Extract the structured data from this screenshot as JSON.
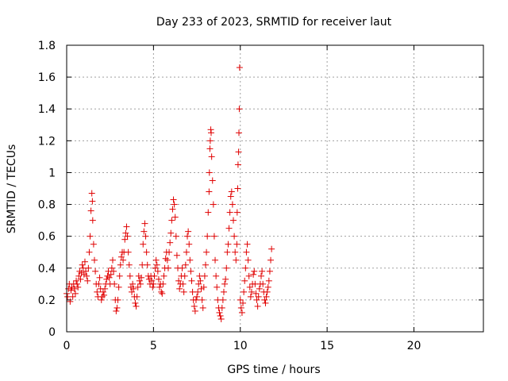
{
  "chart_data": {
    "type": "scatter",
    "title": "Day 233 of 2023, SRMTID for receiver laut",
    "xlabel": "GPS time / hours",
    "ylabel": "SRMTID / TECUs",
    "xlim": [
      0,
      24
    ],
    "ylim": [
      0,
      1.8
    ],
    "xticks": [
      "0",
      "5",
      "10",
      "15",
      "20"
    ],
    "yticks": [
      "0",
      "0.2",
      "0.4",
      "0.6",
      "0.8",
      "1",
      "1.2",
      "1.4",
      "1.6",
      "1.8"
    ],
    "grid": true,
    "marker": "+",
    "series_color": "#e00000",
    "series": [
      {
        "name": "SRMTID",
        "points": [
          [
            0.0,
            0.24
          ],
          [
            0.05,
            0.22
          ],
          [
            0.1,
            0.27
          ],
          [
            0.15,
            0.3
          ],
          [
            0.2,
            0.19
          ],
          [
            0.25,
            0.26
          ],
          [
            0.3,
            0.28
          ],
          [
            0.35,
            0.22
          ],
          [
            0.4,
            0.3
          ],
          [
            0.45,
            0.27
          ],
          [
            0.5,
            0.24
          ],
          [
            0.55,
            0.32
          ],
          [
            0.6,
            0.3
          ],
          [
            0.65,
            0.28
          ],
          [
            0.7,
            0.35
          ],
          [
            0.75,
            0.38
          ],
          [
            0.8,
            0.33
          ],
          [
            0.85,
            0.37
          ],
          [
            0.9,
            0.42
          ],
          [
            0.95,
            0.4
          ],
          [
            1.0,
            0.36
          ],
          [
            1.05,
            0.44
          ],
          [
            1.1,
            0.38
          ],
          [
            1.15,
            0.35
          ],
          [
            1.2,
            0.32
          ],
          [
            1.25,
            0.4
          ],
          [
            1.3,
            0.5
          ],
          [
            1.35,
            0.6
          ],
          [
            1.4,
            0.76
          ],
          [
            1.45,
            0.87
          ],
          [
            1.48,
            0.82
          ],
          [
            1.5,
            0.7
          ],
          [
            1.55,
            0.55
          ],
          [
            1.6,
            0.45
          ],
          [
            1.65,
            0.38
          ],
          [
            1.7,
            0.3
          ],
          [
            1.75,
            0.25
          ],
          [
            1.8,
            0.22
          ],
          [
            1.85,
            0.3
          ],
          [
            1.9,
            0.34
          ],
          [
            1.95,
            0.27
          ],
          [
            2.0,
            0.2
          ],
          [
            2.05,
            0.22
          ],
          [
            2.1,
            0.25
          ],
          [
            2.15,
            0.23
          ],
          [
            2.2,
            0.27
          ],
          [
            2.25,
            0.3
          ],
          [
            2.3,
            0.33
          ],
          [
            2.35,
            0.35
          ],
          [
            2.4,
            0.38
          ],
          [
            2.45,
            0.34
          ],
          [
            2.5,
            0.3
          ],
          [
            2.55,
            0.36
          ],
          [
            2.6,
            0.4
          ],
          [
            2.65,
            0.45
          ],
          [
            2.7,
            0.38
          ],
          [
            2.75,
            0.3
          ],
          [
            2.8,
            0.2
          ],
          [
            2.85,
            0.13
          ],
          [
            2.9,
            0.15
          ],
          [
            2.95,
            0.2
          ],
          [
            3.0,
            0.28
          ],
          [
            3.05,
            0.35
          ],
          [
            3.1,
            0.42
          ],
          [
            3.15,
            0.47
          ],
          [
            3.2,
            0.5
          ],
          [
            3.25,
            0.45
          ],
          [
            3.3,
            0.5
          ],
          [
            3.35,
            0.58
          ],
          [
            3.4,
            0.62
          ],
          [
            3.45,
            0.66
          ],
          [
            3.5,
            0.6
          ],
          [
            3.55,
            0.5
          ],
          [
            3.6,
            0.42
          ],
          [
            3.65,
            0.35
          ],
          [
            3.7,
            0.28
          ],
          [
            3.75,
            0.25
          ],
          [
            3.8,
            0.3
          ],
          [
            3.85,
            0.27
          ],
          [
            3.9,
            0.22
          ],
          [
            3.95,
            0.18
          ],
          [
            4.0,
            0.16
          ],
          [
            4.05,
            0.22
          ],
          [
            4.1,
            0.28
          ],
          [
            4.15,
            0.35
          ],
          [
            4.2,
            0.32
          ],
          [
            4.25,
            0.3
          ],
          [
            4.3,
            0.34
          ],
          [
            4.35,
            0.42
          ],
          [
            4.4,
            0.55
          ],
          [
            4.45,
            0.63
          ],
          [
            4.5,
            0.68
          ],
          [
            4.55,
            0.6
          ],
          [
            4.6,
            0.5
          ],
          [
            4.65,
            0.42
          ],
          [
            4.7,
            0.35
          ],
          [
            4.75,
            0.33
          ],
          [
            4.8,
            0.3
          ],
          [
            4.85,
            0.35
          ],
          [
            4.9,
            0.32
          ],
          [
            4.95,
            0.28
          ],
          [
            5.0,
            0.3
          ],
          [
            5.05,
            0.35
          ],
          [
            5.1,
            0.4
          ],
          [
            5.15,
            0.45
          ],
          [
            5.2,
            0.42
          ],
          [
            5.25,
            0.38
          ],
          [
            5.3,
            0.33
          ],
          [
            5.35,
            0.28
          ],
          [
            5.4,
            0.3
          ],
          [
            5.45,
            0.25
          ],
          [
            5.5,
            0.24
          ],
          [
            5.55,
            0.3
          ],
          [
            5.6,
            0.35
          ],
          [
            5.65,
            0.4
          ],
          [
            5.7,
            0.46
          ],
          [
            5.75,
            0.5
          ],
          [
            5.8,
            0.45
          ],
          [
            5.85,
            0.4
          ],
          [
            5.9,
            0.5
          ],
          [
            5.95,
            0.56
          ],
          [
            6.0,
            0.62
          ],
          [
            6.05,
            0.7
          ],
          [
            6.1,
            0.77
          ],
          [
            6.15,
            0.83
          ],
          [
            6.2,
            0.8
          ],
          [
            6.25,
            0.72
          ],
          [
            6.3,
            0.6
          ],
          [
            6.35,
            0.48
          ],
          [
            6.4,
            0.4
          ],
          [
            6.45,
            0.32
          ],
          [
            6.5,
            0.27
          ],
          [
            6.55,
            0.3
          ],
          [
            6.6,
            0.35
          ],
          [
            6.65,
            0.4
          ],
          [
            6.7,
            0.3
          ],
          [
            6.75,
            0.25
          ],
          [
            6.8,
            0.35
          ],
          [
            6.85,
            0.42
          ],
          [
            6.9,
            0.5
          ],
          [
            6.95,
            0.6
          ],
          [
            7.0,
            0.63
          ],
          [
            7.05,
            0.55
          ],
          [
            7.1,
            0.45
          ],
          [
            7.15,
            0.38
          ],
          [
            7.2,
            0.32
          ],
          [
            7.25,
            0.25
          ],
          [
            7.3,
            0.2
          ],
          [
            7.35,
            0.16
          ],
          [
            7.4,
            0.13
          ],
          [
            7.45,
            0.2
          ],
          [
            7.5,
            0.22
          ],
          [
            7.55,
            0.25
          ],
          [
            7.6,
            0.3
          ],
          [
            7.65,
            0.35
          ],
          [
            7.7,
            0.32
          ],
          [
            7.75,
            0.27
          ],
          [
            7.8,
            0.2
          ],
          [
            7.85,
            0.15
          ],
          [
            7.9,
            0.28
          ],
          [
            7.95,
            0.35
          ],
          [
            8.0,
            0.42
          ],
          [
            8.05,
            0.5
          ],
          [
            8.1,
            0.6
          ],
          [
            8.15,
            0.75
          ],
          [
            8.2,
            0.88
          ],
          [
            8.22,
            1.0
          ],
          [
            8.25,
            1.15
          ],
          [
            8.27,
            1.2
          ],
          [
            8.3,
            1.27
          ],
          [
            8.32,
            1.25
          ],
          [
            8.35,
            1.1
          ],
          [
            8.4,
            0.95
          ],
          [
            8.45,
            0.8
          ],
          [
            8.5,
            0.6
          ],
          [
            8.55,
            0.45
          ],
          [
            8.6,
            0.35
          ],
          [
            8.65,
            0.28
          ],
          [
            8.7,
            0.2
          ],
          [
            8.75,
            0.15
          ],
          [
            8.8,
            0.12
          ],
          [
            8.85,
            0.1
          ],
          [
            8.9,
            0.08
          ],
          [
            8.95,
            0.15
          ],
          [
            9.0,
            0.2
          ],
          [
            9.05,
            0.25
          ],
          [
            9.1,
            0.3
          ],
          [
            9.15,
            0.33
          ],
          [
            9.2,
            0.4
          ],
          [
            9.25,
            0.5
          ],
          [
            9.3,
            0.55
          ],
          [
            9.35,
            0.65
          ],
          [
            9.4,
            0.75
          ],
          [
            9.45,
            0.85
          ],
          [
            9.5,
            0.88
          ],
          [
            9.55,
            0.8
          ],
          [
            9.6,
            0.7
          ],
          [
            9.65,
            0.6
          ],
          [
            9.7,
            0.5
          ],
          [
            9.75,
            0.45
          ],
          [
            9.8,
            0.55
          ],
          [
            9.82,
            0.75
          ],
          [
            9.85,
            0.9
          ],
          [
            9.87,
            1.05
          ],
          [
            9.9,
            1.13
          ],
          [
            9.92,
            1.25
          ],
          [
            9.94,
            1.4
          ],
          [
            9.96,
            1.66
          ],
          [
            10.0,
            0.2
          ],
          [
            10.05,
            0.15
          ],
          [
            10.1,
            0.12
          ],
          [
            10.15,
            0.18
          ],
          [
            10.2,
            0.25
          ],
          [
            10.25,
            0.32
          ],
          [
            10.3,
            0.4
          ],
          [
            10.35,
            0.5
          ],
          [
            10.4,
            0.55
          ],
          [
            10.45,
            0.45
          ],
          [
            10.5,
            0.35
          ],
          [
            10.55,
            0.28
          ],
          [
            10.6,
            0.22
          ],
          [
            10.65,
            0.25
          ],
          [
            10.7,
            0.3
          ],
          [
            10.75,
            0.36
          ],
          [
            10.8,
            0.38
          ],
          [
            10.85,
            0.3
          ],
          [
            10.9,
            0.24
          ],
          [
            10.95,
            0.2
          ],
          [
            11.0,
            0.16
          ],
          [
            11.05,
            0.22
          ],
          [
            11.1,
            0.27
          ],
          [
            11.15,
            0.3
          ],
          [
            11.2,
            0.35
          ],
          [
            11.25,
            0.38
          ],
          [
            11.3,
            0.3
          ],
          [
            11.35,
            0.25
          ],
          [
            11.4,
            0.2
          ],
          [
            11.45,
            0.18
          ],
          [
            11.5,
            0.22
          ],
          [
            11.55,
            0.25
          ],
          [
            11.6,
            0.28
          ],
          [
            11.65,
            0.32
          ],
          [
            11.7,
            0.38
          ],
          [
            11.75,
            0.45
          ],
          [
            11.8,
            0.52
          ]
        ]
      }
    ]
  }
}
